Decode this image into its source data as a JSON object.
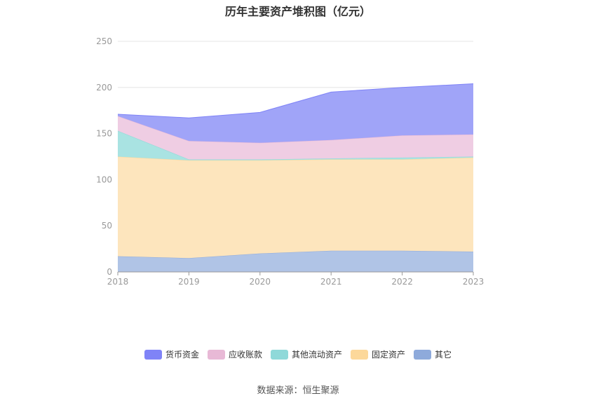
{
  "chart_data": {
    "type": "area",
    "stacked": true,
    "title": "历年主要资产堆积图（亿元）",
    "x": [
      "2018",
      "2019",
      "2020",
      "2021",
      "2022",
      "2023"
    ],
    "ylim": [
      0,
      250
    ],
    "yticks": [
      0,
      50,
      100,
      150,
      200,
      250
    ],
    "grid": true,
    "legend_position": "bottom",
    "series": [
      {
        "name": "其它",
        "values": [
          17,
          15,
          20,
          23,
          23,
          22
        ],
        "color": "#8eaadb",
        "fill": "#b0c4e6"
      },
      {
        "name": "固定资产",
        "values": [
          108,
          106,
          101,
          99,
          99,
          102
        ],
        "color": "#fcd89a",
        "fill": "#fde5bd"
      },
      {
        "name": "其他流动资产",
        "values": [
          28,
          1,
          1,
          1,
          2,
          1
        ],
        "color": "#8fd9d9",
        "fill": "#a9e3e2"
      },
      {
        "name": "应收账款",
        "values": [
          16,
          20,
          18,
          20,
          24,
          24
        ],
        "color": "#e8b9d6",
        "fill": "#efcde3"
      },
      {
        "name": "货币资金",
        "values": [
          2,
          25,
          33,
          52,
          52,
          55
        ],
        "color": "#7f83f7",
        "fill": "#a0a4f8"
      }
    ],
    "source": "数据来源：恒生聚源"
  }
}
